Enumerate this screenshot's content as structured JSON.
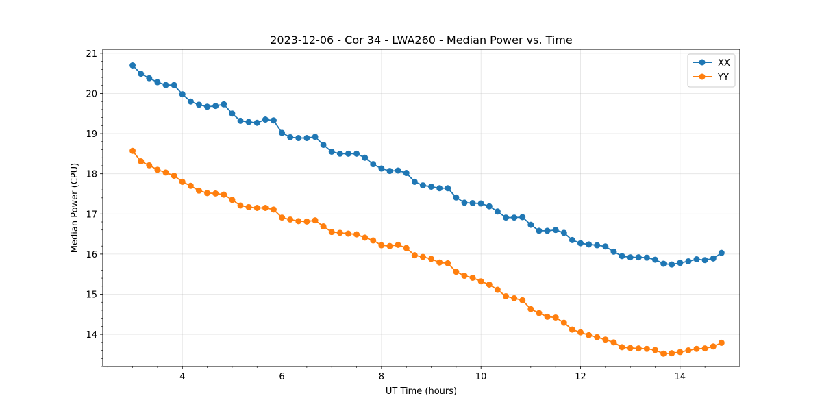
{
  "chart_data": {
    "type": "line",
    "title": "2023-12-06 - Cor 34 - LWA260 - Median Power vs. Time",
    "xlabel": "UT Time (hours)",
    "ylabel": "Median Power (CPU)",
    "xlim": [
      2.4,
      15.2
    ],
    "ylim": [
      13.2,
      21.1
    ],
    "xticks": [
      4,
      6,
      8,
      10,
      12,
      14
    ],
    "yticks": [
      14,
      15,
      16,
      17,
      18,
      19,
      20,
      21
    ],
    "grid": true,
    "legend_position": "top-right",
    "x": [
      3.0,
      3.167,
      3.333,
      3.5,
      3.667,
      3.833,
      4.0,
      4.167,
      4.333,
      4.5,
      4.667,
      4.833,
      5.0,
      5.167,
      5.333,
      5.5,
      5.667,
      5.833,
      6.0,
      6.167,
      6.333,
      6.5,
      6.667,
      6.833,
      7.0,
      7.167,
      7.333,
      7.5,
      7.667,
      7.833,
      8.0,
      8.167,
      8.333,
      8.5,
      8.667,
      8.833,
      9.0,
      9.167,
      9.333,
      9.5,
      9.667,
      9.833,
      10.0,
      10.167,
      10.333,
      10.5,
      10.667,
      10.833,
      11.0,
      11.167,
      11.333,
      11.5,
      11.667,
      11.833,
      12.0,
      12.167,
      12.333,
      12.5,
      12.667,
      12.833,
      13.0,
      13.167,
      13.333,
      13.5,
      13.667,
      13.833,
      14.0,
      14.167,
      14.333,
      14.5,
      14.667,
      14.833
    ],
    "series": [
      {
        "name": "XX",
        "color": "#1f77b4",
        "values": [
          20.7,
          20.49,
          20.38,
          20.28,
          20.21,
          20.21,
          19.98,
          19.8,
          19.72,
          19.67,
          19.69,
          19.73,
          19.5,
          19.32,
          19.29,
          19.27,
          19.35,
          19.33,
          19.02,
          18.91,
          18.89,
          18.89,
          18.92,
          18.72,
          18.55,
          18.5,
          18.5,
          18.5,
          18.4,
          18.24,
          18.13,
          18.07,
          18.08,
          18.02,
          17.8,
          17.71,
          17.68,
          17.64,
          17.64,
          17.41,
          17.28,
          17.27,
          17.26,
          17.19,
          17.06,
          16.91,
          16.91,
          16.92,
          16.73,
          16.58,
          16.58,
          16.6,
          16.53,
          16.35,
          16.27,
          16.24,
          16.22,
          16.19,
          16.06,
          15.95,
          15.92,
          15.92,
          15.91,
          15.86,
          15.76,
          15.74,
          15.78,
          15.82,
          15.87,
          15.85,
          15.89,
          16.03
        ]
      },
      {
        "name": "YY",
        "color": "#ff7f0e",
        "values": [
          18.57,
          18.31,
          18.21,
          18.1,
          18.03,
          17.95,
          17.8,
          17.7,
          17.58,
          17.52,
          17.51,
          17.48,
          17.35,
          17.21,
          17.17,
          17.15,
          17.15,
          17.11,
          16.91,
          16.86,
          16.82,
          16.81,
          16.84,
          16.69,
          16.55,
          16.53,
          16.51,
          16.49,
          16.41,
          16.34,
          16.22,
          16.2,
          16.23,
          16.15,
          15.97,
          15.93,
          15.88,
          15.79,
          15.77,
          15.56,
          15.46,
          15.41,
          15.32,
          15.24,
          15.11,
          14.95,
          14.9,
          14.85,
          14.63,
          14.53,
          14.44,
          14.42,
          14.29,
          14.12,
          14.05,
          13.98,
          13.93,
          13.87,
          13.8,
          13.68,
          13.66,
          13.65,
          13.64,
          13.61,
          13.52,
          13.53,
          13.56,
          13.6,
          13.64,
          13.65,
          13.7,
          13.79
        ]
      }
    ]
  }
}
